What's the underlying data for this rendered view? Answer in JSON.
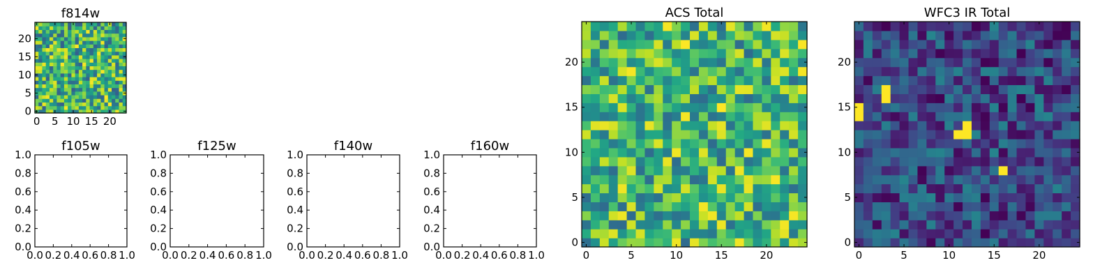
{
  "chart_data": [
    {
      "id": "f814w",
      "type": "heatmap",
      "title": "f814w",
      "grid_size": 25,
      "xticks": [
        0,
        5,
        10,
        15,
        20
      ],
      "yticks": [
        0,
        5,
        10,
        15,
        20
      ],
      "xlim": [
        -0.5,
        24.5
      ],
      "ylim": [
        -0.5,
        24.5
      ],
      "colormap": "viridis",
      "value_range": [
        0.3,
        1.0
      ],
      "seed": 814
    },
    {
      "id": "f105w",
      "type": "empty",
      "title": "f105w",
      "xticks": [
        "0.0",
        "0.2",
        "0.4",
        "0.6",
        "0.8",
        "1.0"
      ],
      "yticks": [
        "0.0",
        "0.2",
        "0.4",
        "0.6",
        "0.8",
        "1.0"
      ],
      "xlim": [
        0,
        1
      ],
      "ylim": [
        0,
        1
      ]
    },
    {
      "id": "f125w",
      "type": "empty",
      "title": "f125w",
      "xticks": [
        "0.0",
        "0.2",
        "0.4",
        "0.6",
        "0.8",
        "1.0"
      ],
      "yticks": [
        "0.0",
        "0.2",
        "0.4",
        "0.6",
        "0.8",
        "1.0"
      ],
      "xlim": [
        0,
        1
      ],
      "ylim": [
        0,
        1
      ]
    },
    {
      "id": "f140w",
      "type": "empty",
      "title": "f140w",
      "xticks": [
        "0.0",
        "0.2",
        "0.4",
        "0.6",
        "0.8",
        "1.0"
      ],
      "yticks": [
        "0.0",
        "0.2",
        "0.4",
        "0.6",
        "0.8",
        "1.0"
      ],
      "xlim": [
        0,
        1
      ],
      "ylim": [
        0,
        1
      ]
    },
    {
      "id": "f160w",
      "type": "empty",
      "title": "f160w",
      "xticks": [
        "0.0",
        "0.2",
        "0.4",
        "0.6",
        "0.8",
        "1.0"
      ],
      "yticks": [
        "0.0",
        "0.2",
        "0.4",
        "0.6",
        "0.8",
        "1.0"
      ],
      "xlim": [
        0,
        1
      ],
      "ylim": [
        0,
        1
      ]
    },
    {
      "id": "acs_total",
      "type": "heatmap",
      "title": "ACS Total",
      "grid_size": 25,
      "xticks": [
        0,
        5,
        10,
        15,
        20
      ],
      "yticks": [
        0,
        5,
        10,
        15,
        20
      ],
      "xlim": [
        -0.5,
        24.5
      ],
      "ylim": [
        -0.5,
        24.5
      ],
      "colormap": "viridis",
      "value_range": [
        0.35,
        1.0
      ],
      "seed": 2017
    },
    {
      "id": "wfc3_ir_total",
      "type": "heatmap",
      "title": "WFC3 IR Total",
      "grid_size": 25,
      "xticks": [
        0,
        5,
        10,
        15,
        20
      ],
      "yticks": [
        0,
        5,
        10,
        15,
        20
      ],
      "xlim": [
        -0.5,
        24.5
      ],
      "ylim": [
        -0.5,
        24.5
      ],
      "colormap": "viridis",
      "value_range": [
        0.0,
        0.45
      ],
      "bright_pixels": [
        [
          0,
          14
        ],
        [
          0,
          15
        ],
        [
          3,
          16
        ],
        [
          3,
          17
        ],
        [
          11,
          12
        ],
        [
          12,
          12
        ],
        [
          12,
          13
        ],
        [
          16,
          8
        ]
      ],
      "seed": 3
    }
  ]
}
